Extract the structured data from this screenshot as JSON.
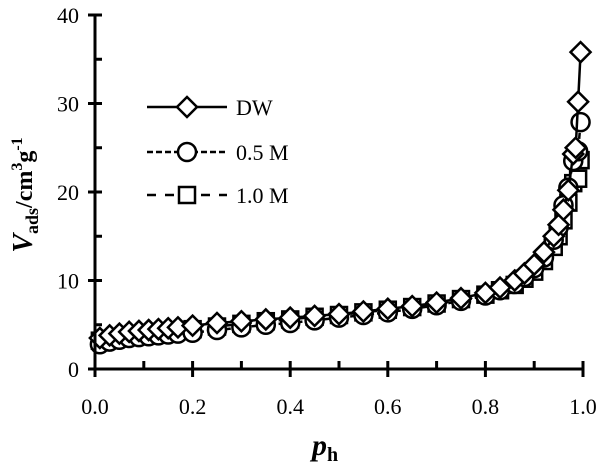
{
  "chart_data": {
    "type": "line",
    "title": "",
    "xlabel": "p_h",
    "xlabel_main": "p",
    "xlabel_sub": "h",
    "ylabel": "V_ads/cm3g-1",
    "ylabel_main": "V",
    "ylabel_sub": "ads",
    "ylabel_unit": "/cm",
    "ylabel_sup1": "3",
    "ylabel_g": "g",
    "ylabel_sup2": "-1",
    "xlim": [
      0.0,
      1.0
    ],
    "ylim": [
      0,
      40
    ],
    "xticks": [
      "0.0",
      "0.2",
      "0.4",
      "0.6",
      "0.8",
      "1.0"
    ],
    "xtick_values": [
      0.0,
      0.2,
      0.4,
      0.6,
      0.8,
      1.0
    ],
    "xminor": [
      0.1,
      0.3,
      0.5,
      0.7,
      0.9
    ],
    "yticks": [
      "0",
      "10",
      "20",
      "30",
      "40"
    ],
    "ytick_values": [
      0,
      10,
      20,
      30,
      40
    ],
    "yminor": [
      5,
      15,
      25,
      35
    ],
    "grid": false,
    "legend_position": "upper-left",
    "series": [
      {
        "name": "DW",
        "marker": "diamond",
        "line": "solid",
        "x": [
          0.01,
          0.03,
          0.05,
          0.07,
          0.09,
          0.11,
          0.13,
          0.15,
          0.17,
          0.2,
          0.25,
          0.3,
          0.35,
          0.4,
          0.45,
          0.5,
          0.55,
          0.6,
          0.65,
          0.7,
          0.75,
          0.8,
          0.83,
          0.86,
          0.88,
          0.9,
          0.92,
          0.94,
          0.95,
          0.96,
          0.97,
          0.98,
          0.985,
          0.99,
          0.995
        ],
        "y": [
          3.5,
          3.8,
          4.0,
          4.2,
          4.3,
          4.4,
          4.5,
          4.6,
          4.7,
          4.9,
          5.2,
          5.4,
          5.6,
          5.8,
          6.0,
          6.2,
          6.5,
          6.8,
          7.1,
          7.5,
          8.0,
          8.6,
          9.2,
          10.0,
          10.8,
          11.8,
          13.2,
          15.0,
          16.3,
          18.0,
          20.2,
          24.3,
          25.0,
          30.2,
          35.8
        ]
      },
      {
        "name": "0.5 M",
        "marker": "circle",
        "line": "short-dash",
        "x": [
          0.01,
          0.03,
          0.05,
          0.07,
          0.09,
          0.11,
          0.13,
          0.15,
          0.17,
          0.2,
          0.25,
          0.3,
          0.35,
          0.4,
          0.45,
          0.5,
          0.55,
          0.6,
          0.65,
          0.7,
          0.75,
          0.8,
          0.83,
          0.86,
          0.88,
          0.9,
          0.92,
          0.94,
          0.95,
          0.96,
          0.97,
          0.98,
          0.99,
          0.995
        ],
        "y": [
          2.8,
          3.1,
          3.3,
          3.5,
          3.6,
          3.7,
          3.8,
          3.9,
          4.0,
          4.1,
          4.4,
          4.7,
          5.0,
          5.2,
          5.5,
          5.8,
          6.1,
          6.4,
          6.8,
          7.2,
          7.7,
          8.3,
          8.9,
          9.6,
          10.4,
          11.4,
          12.6,
          14.6,
          16.0,
          18.5,
          20.5,
          23.5,
          24.6,
          27.9
        ]
      },
      {
        "name": "1.0 M",
        "marker": "square",
        "line": "long-dash",
        "x": [
          0.01,
          0.03,
          0.05,
          0.07,
          0.09,
          0.11,
          0.13,
          0.15,
          0.17,
          0.2,
          0.25,
          0.3,
          0.35,
          0.4,
          0.45,
          0.5,
          0.55,
          0.6,
          0.65,
          0.7,
          0.75,
          0.8,
          0.83,
          0.86,
          0.88,
          0.9,
          0.92,
          0.94,
          0.95,
          0.96,
          0.97,
          0.98,
          0.99,
          0.995
        ],
        "y": [
          3.2,
          3.4,
          3.6,
          3.8,
          3.9,
          4.0,
          4.1,
          4.2,
          4.3,
          4.5,
          4.8,
          5.1,
          5.4,
          5.6,
          5.9,
          6.1,
          6.4,
          6.7,
          7.0,
          7.4,
          7.9,
          8.4,
          8.9,
          9.5,
          10.2,
          11.0,
          12.2,
          13.8,
          15.0,
          16.8,
          18.8,
          21.0,
          21.5,
          23.6
        ]
      }
    ]
  },
  "legend": {
    "items": [
      {
        "label": "DW",
        "marker": "diamond",
        "line": "solid"
      },
      {
        "label": "0.5 M",
        "marker": "circle",
        "line": "short-dash"
      },
      {
        "label": "1.0 M",
        "marker": "square",
        "line": "long-dash"
      }
    ]
  },
  "colors": {
    "ink": "#000000",
    "background": "#ffffff",
    "marker_fill": "#ffffff"
  }
}
